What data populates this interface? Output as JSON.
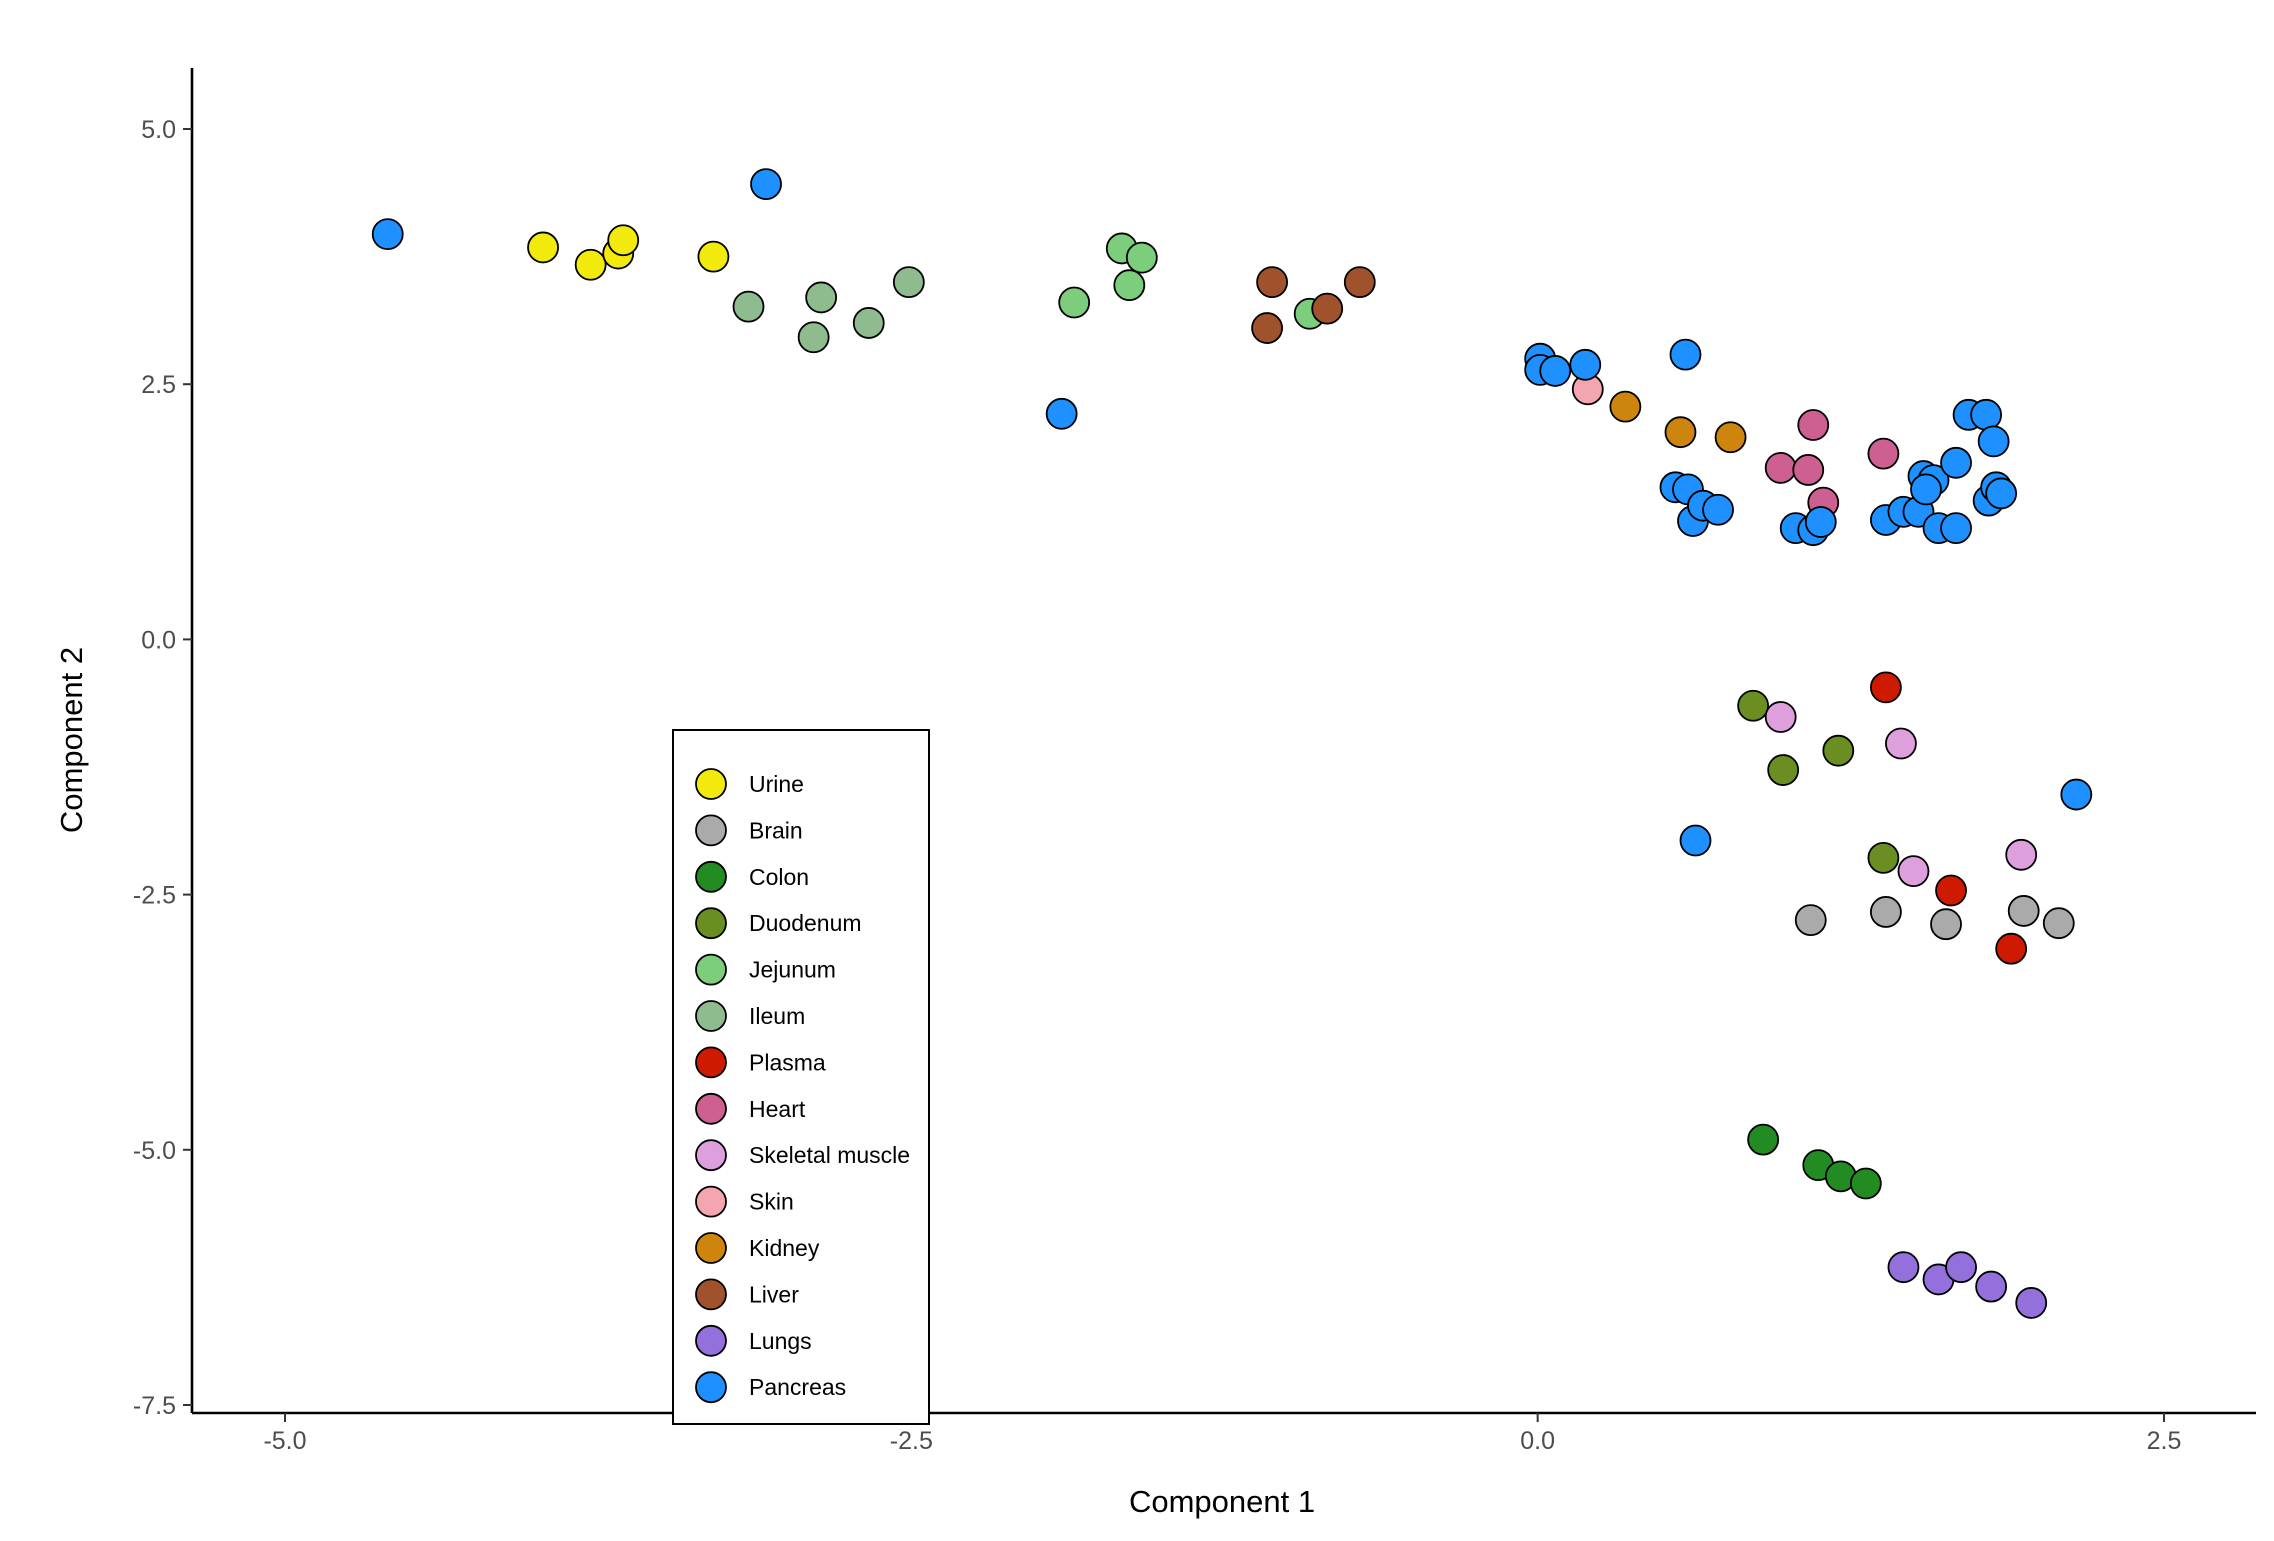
{
  "chart_data": {
    "type": "scatter",
    "xlabel": "Component 1",
    "ylabel": "Component 2",
    "xlim": [
      -5.4,
      2.85
    ],
    "ylim": [
      -7.6,
      5.6
    ],
    "xticks": [
      -5.0,
      -2.5,
      0.0,
      2.5
    ],
    "yticks": [
      5.0,
      2.5,
      0.0,
      -2.5,
      -5.0,
      -7.5
    ],
    "xtick_labels": [
      "-5.0",
      "-2.5",
      "0.0",
      "2.5"
    ],
    "ytick_labels": [
      "5.0",
      "2.5",
      "0.0",
      "-2.5",
      "-5.0",
      "-7.5"
    ],
    "grid": false,
    "legend_position": "bottom-left (inside plot)",
    "series": [
      {
        "name": "Urine",
        "color": "#f2ea0d",
        "points": [
          [
            -3.97,
            3.84
          ],
          [
            -3.78,
            3.67
          ],
          [
            -3.67,
            3.78
          ],
          [
            -3.65,
            3.91
          ],
          [
            -3.29,
            3.75
          ]
        ]
      },
      {
        "name": "Brain",
        "color": "#aaaaaa",
        "points": [
          [
            1.09,
            -2.75
          ],
          [
            1.39,
            -2.67
          ],
          [
            1.63,
            -2.79
          ],
          [
            1.94,
            -2.66
          ],
          [
            2.08,
            -2.78
          ]
        ]
      },
      {
        "name": "Colon",
        "color": "#228b22",
        "points": [
          [
            0.9,
            -4.9
          ],
          [
            1.12,
            -5.15
          ],
          [
            1.21,
            -5.26
          ],
          [
            1.31,
            -5.33
          ]
        ]
      },
      {
        "name": "Duodenum",
        "color": "#6b8e23",
        "points": [
          [
            0.86,
            -0.65
          ],
          [
            0.98,
            -1.28
          ],
          [
            1.2,
            -1.09
          ],
          [
            1.38,
            -2.14
          ]
        ]
      },
      {
        "name": "Jejunum",
        "color": "#7ccd7c",
        "points": [
          [
            -1.85,
            3.3
          ],
          [
            -1.66,
            3.83
          ],
          [
            -1.58,
            3.74
          ],
          [
            -1.63,
            3.47
          ],
          [
            -0.91,
            3.19
          ]
        ]
      },
      {
        "name": "Ileum",
        "color": "#8fbc8f",
        "points": [
          [
            -3.15,
            3.26
          ],
          [
            -2.86,
            3.35
          ],
          [
            -2.89,
            2.96
          ],
          [
            -2.67,
            3.1
          ],
          [
            -2.51,
            3.5
          ]
        ]
      },
      {
        "name": "Plasma",
        "color": "#cd1a00",
        "points": [
          [
            1.39,
            -0.47
          ],
          [
            1.65,
            -2.46
          ],
          [
            1.89,
            -3.03
          ]
        ]
      },
      {
        "name": "Heart",
        "color": "#cd6090",
        "points": [
          [
            1.1,
            2.1
          ],
          [
            0.97,
            1.68
          ],
          [
            1.08,
            1.66
          ],
          [
            1.14,
            1.34
          ],
          [
            1.38,
            1.82
          ]
        ]
      },
      {
        "name": "Skeletal muscle",
        "color": "#dda0dd",
        "points": [
          [
            0.97,
            -0.76
          ],
          [
            1.45,
            -1.02
          ],
          [
            1.5,
            -2.27
          ],
          [
            1.93,
            -2.11
          ]
        ]
      },
      {
        "name": "Skin",
        "color": "#f4a6b0",
        "points": [
          [
            0.2,
            2.45
          ]
        ]
      },
      {
        "name": "Kidney",
        "color": "#cd850d",
        "points": [
          [
            0.35,
            2.28
          ],
          [
            0.57,
            2.03
          ],
          [
            0.77,
            1.98
          ]
        ]
      },
      {
        "name": "Liver",
        "color": "#a0522d",
        "points": [
          [
            -1.06,
            3.5
          ],
          [
            -1.08,
            3.05
          ],
          [
            -0.84,
            3.24
          ],
          [
            -0.71,
            3.5
          ]
        ]
      },
      {
        "name": "Lungs",
        "color": "#9370db",
        "points": [
          [
            1.46,
            -6.15
          ],
          [
            1.6,
            -6.27
          ],
          [
            1.69,
            -6.15
          ],
          [
            1.81,
            -6.34
          ],
          [
            1.97,
            -6.5
          ]
        ]
      },
      {
        "name": "Pancreas",
        "color": "#1e90ff",
        "points": [
          [
            -4.59,
            3.97
          ],
          [
            -3.08,
            4.46
          ],
          [
            -1.9,
            2.21
          ],
          [
            0.01,
            2.75
          ],
          [
            0.01,
            2.64
          ],
          [
            0.07,
            2.63
          ],
          [
            0.19,
            2.69
          ],
          [
            0.59,
            2.79
          ],
          [
            0.55,
            1.49
          ],
          [
            0.6,
            1.47
          ],
          [
            0.62,
            1.16
          ],
          [
            0.66,
            1.31
          ],
          [
            0.72,
            1.27
          ],
          [
            1.03,
            1.09
          ],
          [
            1.1,
            1.07
          ],
          [
            1.13,
            1.15
          ],
          [
            1.39,
            1.17
          ],
          [
            1.46,
            1.25
          ],
          [
            1.52,
            1.25
          ],
          [
            1.54,
            1.6
          ],
          [
            1.58,
            1.56
          ],
          [
            1.55,
            1.47
          ],
          [
            1.6,
            1.09
          ],
          [
            1.67,
            1.09
          ],
          [
            1.67,
            1.73
          ],
          [
            1.72,
            2.2
          ],
          [
            1.79,
            2.2
          ],
          [
            1.8,
            1.36
          ],
          [
            1.83,
            1.49
          ],
          [
            1.85,
            1.43
          ],
          [
            1.82,
            1.94
          ],
          [
            0.63,
            -1.97
          ],
          [
            2.15,
            -1.52
          ]
        ]
      }
    ]
  }
}
